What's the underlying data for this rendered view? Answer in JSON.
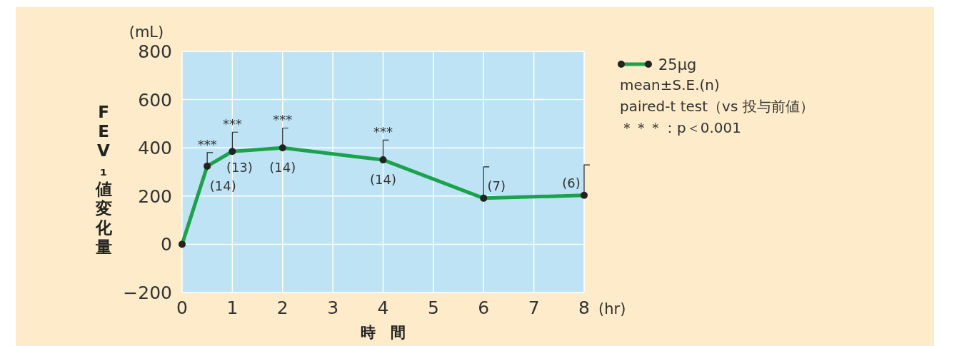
{
  "chart_data": {
    "type": "line",
    "xlabel": "時　間",
    "ylabel": "FEV₁値変化量",
    "x": [
      0,
      0.5,
      1,
      2,
      4,
      6,
      8
    ],
    "series": [
      {
        "name": "25μg",
        "color": "#1aa34a",
        "values": [
          0,
          324,
          385,
          400,
          350,
          191,
          203
        ],
        "errors": [
          null,
          [
            324,
            380
          ],
          [
            385,
            465
          ],
          [
            400,
            482
          ],
          [
            350,
            432
          ],
          [
            191,
            321
          ],
          [
            203,
            329
          ]
        ]
      }
    ],
    "xlim": [
      0,
      8
    ],
    "ylim": [
      -200,
      800
    ],
    "xticks": [
      0,
      1,
      2,
      3,
      4,
      5,
      6,
      7,
      8
    ],
    "yticks": [
      -200,
      0,
      200,
      400,
      600,
      800
    ],
    "grid": true,
    "marker": "circle",
    "line_style": "solid",
    "legend": "right",
    "annotations": [
      "(mL)",
      "(hr)",
      "mean±S.E.(n)",
      "paired-t test（vs 投与前値）",
      "＊＊＊：p＜0.001",
      {
        "text": "***",
        "x": 0.5,
        "y": 380
      },
      {
        "text": "***",
        "x": 1,
        "y": 465
      },
      {
        "text": "***",
        "x": 2,
        "y": 482
      },
      {
        "text": "***",
        "x": 4,
        "y": 432
      },
      {
        "text": "(14)",
        "x": 0.5,
        "y": 324
      },
      {
        "text": "(13)",
        "x": 1,
        "y": 385
      },
      {
        "text": "(14)",
        "x": 2,
        "y": 400
      },
      {
        "text": "(14)",
        "x": 4,
        "y": 350
      },
      {
        "text": "(7)",
        "x": 6,
        "y": 191
      },
      {
        "text": "(6)",
        "x": 8,
        "y": 203
      }
    ]
  }
}
